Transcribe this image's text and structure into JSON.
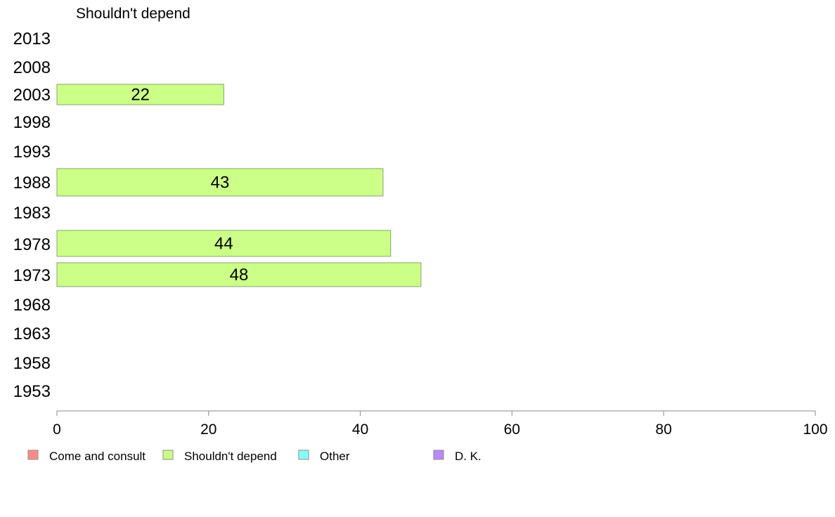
{
  "chart_data": {
    "type": "bar",
    "orientation": "horizontal",
    "title": "Shouldn't depend",
    "xlim": [
      0,
      100
    ],
    "x_ticks": [
      0,
      20,
      40,
      60,
      80,
      100
    ],
    "categories": [
      "2013",
      "2008",
      "2003",
      "1998",
      "1993",
      "1988",
      "1983",
      "1978",
      "1973",
      "1968",
      "1963",
      "1958",
      "1953"
    ],
    "series": [
      {
        "name": "Shouldn't depend",
        "color": "#ccff88",
        "values": [
          null,
          null,
          22,
          null,
          null,
          43,
          null,
          44,
          48,
          null,
          null,
          null,
          null
        ],
        "labels": [
          "",
          "",
          "22",
          "",
          "",
          "43",
          "",
          "44",
          "48",
          "",
          "",
          "",
          ""
        ]
      }
    ],
    "legend": {
      "placement": "bottom",
      "items": [
        {
          "label": "Come and consult",
          "color": "#ff8c88"
        },
        {
          "label": "Shouldn't depend",
          "color": "#ccff88"
        },
        {
          "label": "Other",
          "color": "#88ffff"
        },
        {
          "label": "D. K.",
          "color": "#bb88ff"
        }
      ]
    },
    "grid": false
  }
}
